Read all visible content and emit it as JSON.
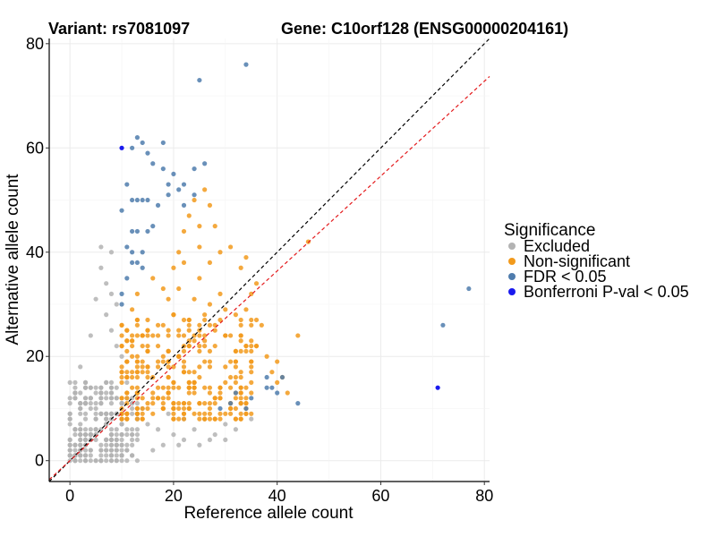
{
  "chart_data": {
    "type": "scatter",
    "title_left": "Variant: rs7081097",
    "title_right": "Gene: C10orf128 (ENSG00000204161)",
    "xlabel": "Reference allele count",
    "ylabel": "Alternative allele count",
    "xlim": [
      -4,
      81
    ],
    "ylim": [
      -4,
      81
    ],
    "xticks": [
      0,
      20,
      40,
      60,
      80
    ],
    "yticks": [
      0,
      20,
      40,
      60,
      80
    ],
    "grid": true,
    "legend_title": "Significance",
    "legend_position": "right",
    "reference_lines": [
      {
        "name": "identity",
        "slope": 1.0,
        "intercept": 0,
        "color": "#000000",
        "style": "dashed"
      },
      {
        "name": "fit",
        "slope": 0.91,
        "intercept": 0,
        "color": "#e41a1c",
        "style": "dashed"
      }
    ],
    "series": [
      {
        "name": "Excluded",
        "color": "#b3b3b3",
        "region": {
          "x": [
            0,
            13
          ],
          "y": [
            0,
            15
          ],
          "n": 260
        },
        "points": [
          [
            6,
            41
          ],
          [
            7,
            34
          ],
          [
            8,
            40
          ],
          [
            8,
            32
          ],
          [
            8,
            25
          ],
          [
            9,
            30
          ],
          [
            9,
            22
          ],
          [
            7,
            28
          ],
          [
            5,
            31
          ],
          [
            6,
            37
          ],
          [
            4,
            24
          ],
          [
            10,
            20
          ],
          [
            2,
            18
          ],
          [
            3,
            14
          ],
          [
            11,
            15
          ],
          [
            12,
            11
          ],
          [
            14,
            10
          ],
          [
            15,
            7
          ],
          [
            17,
            6
          ],
          [
            20,
            5
          ],
          [
            22,
            4
          ],
          [
            25,
            3
          ],
          [
            28,
            5
          ],
          [
            30,
            7
          ],
          [
            26,
            8
          ],
          [
            24,
            6
          ],
          [
            18,
            3
          ],
          [
            16,
            2
          ],
          [
            22,
            8
          ],
          [
            27,
            4
          ],
          [
            30,
            4
          ],
          [
            32,
            6
          ],
          [
            35,
            8
          ],
          [
            33,
            11
          ],
          [
            21,
            3
          ],
          [
            19,
            9
          ],
          [
            23,
            10
          ],
          [
            13,
            8
          ]
        ]
      },
      {
        "name": "Non-significant",
        "color": "#f29a1c",
        "region": {
          "x": [
            10,
            36
          ],
          "y": [
            8,
            28
          ],
          "n": 300
        },
        "points": [
          [
            16,
            35
          ],
          [
            18,
            33
          ],
          [
            19,
            31
          ],
          [
            20,
            37
          ],
          [
            21,
            40
          ],
          [
            22,
            44
          ],
          [
            22,
            38
          ],
          [
            23,
            47
          ],
          [
            24,
            50
          ],
          [
            25,
            45
          ],
          [
            26,
            52
          ],
          [
            27,
            49
          ],
          [
            28,
            45
          ],
          [
            25,
            41
          ],
          [
            27,
            38
          ],
          [
            29,
            40
          ],
          [
            31,
            41
          ],
          [
            33,
            37
          ],
          [
            34,
            39
          ],
          [
            35,
            32
          ],
          [
            36,
            34
          ],
          [
            37,
            26
          ],
          [
            36,
            22
          ],
          [
            38,
            20
          ],
          [
            39,
            17
          ],
          [
            40,
            19
          ],
          [
            41,
            16
          ],
          [
            42,
            13
          ],
          [
            44,
            24
          ],
          [
            46,
            42
          ],
          [
            25,
            35
          ],
          [
            27,
            30
          ],
          [
            29,
            32
          ],
          [
            30,
            29
          ],
          [
            33,
            27
          ],
          [
            34,
            29
          ],
          [
            12,
            29
          ],
          [
            13,
            32
          ],
          [
            15,
            27
          ],
          [
            17,
            26
          ],
          [
            19,
            24
          ],
          [
            20,
            28
          ],
          [
            30,
            9
          ],
          [
            31,
            11
          ],
          [
            28,
            12
          ],
          [
            32,
            15
          ],
          [
            40,
            15
          ],
          [
            35,
            15
          ],
          [
            26,
            28
          ],
          [
            28,
            26
          ],
          [
            31,
            24
          ],
          [
            24,
            31
          ],
          [
            23,
            27
          ],
          [
            21,
            33
          ]
        ]
      },
      {
        "name": "FDR < 0.05",
        "color": "#4f7cad",
        "points": [
          [
            25,
            73
          ],
          [
            34,
            76
          ],
          [
            13,
            62
          ],
          [
            14,
            61
          ],
          [
            18,
            61
          ],
          [
            12,
            60
          ],
          [
            15,
            59
          ],
          [
            16,
            57
          ],
          [
            18,
            56
          ],
          [
            20,
            55
          ],
          [
            22,
            53
          ],
          [
            24,
            56
          ],
          [
            26,
            57
          ],
          [
            21,
            52
          ],
          [
            19,
            53
          ],
          [
            22,
            49
          ],
          [
            24,
            51
          ],
          [
            11,
            53
          ],
          [
            12,
            50
          ],
          [
            13,
            50
          ],
          [
            14,
            50
          ],
          [
            15,
            50
          ],
          [
            17,
            49
          ],
          [
            19,
            51
          ],
          [
            10,
            48
          ],
          [
            12,
            44
          ],
          [
            13,
            44
          ],
          [
            15,
            44
          ],
          [
            16,
            45
          ],
          [
            11,
            41
          ],
          [
            12,
            40
          ],
          [
            14,
            40
          ],
          [
            13,
            38
          ],
          [
            12,
            38
          ],
          [
            14,
            37
          ],
          [
            11,
            35
          ],
          [
            10,
            32
          ],
          [
            10,
            30
          ],
          [
            44,
            11
          ],
          [
            40,
            13
          ],
          [
            38,
            16
          ],
          [
            38,
            14
          ],
          [
            35,
            12
          ],
          [
            34,
            10
          ],
          [
            32,
            13
          ],
          [
            31,
            11
          ],
          [
            29,
            10
          ],
          [
            41,
            16
          ],
          [
            39,
            14
          ],
          [
            72,
            26
          ],
          [
            77,
            33
          ]
        ]
      },
      {
        "name": "Bonferroni P-val < 0.05",
        "color": "#1a1aee",
        "points": [
          [
            10,
            60
          ],
          [
            71,
            14
          ]
        ]
      }
    ]
  }
}
